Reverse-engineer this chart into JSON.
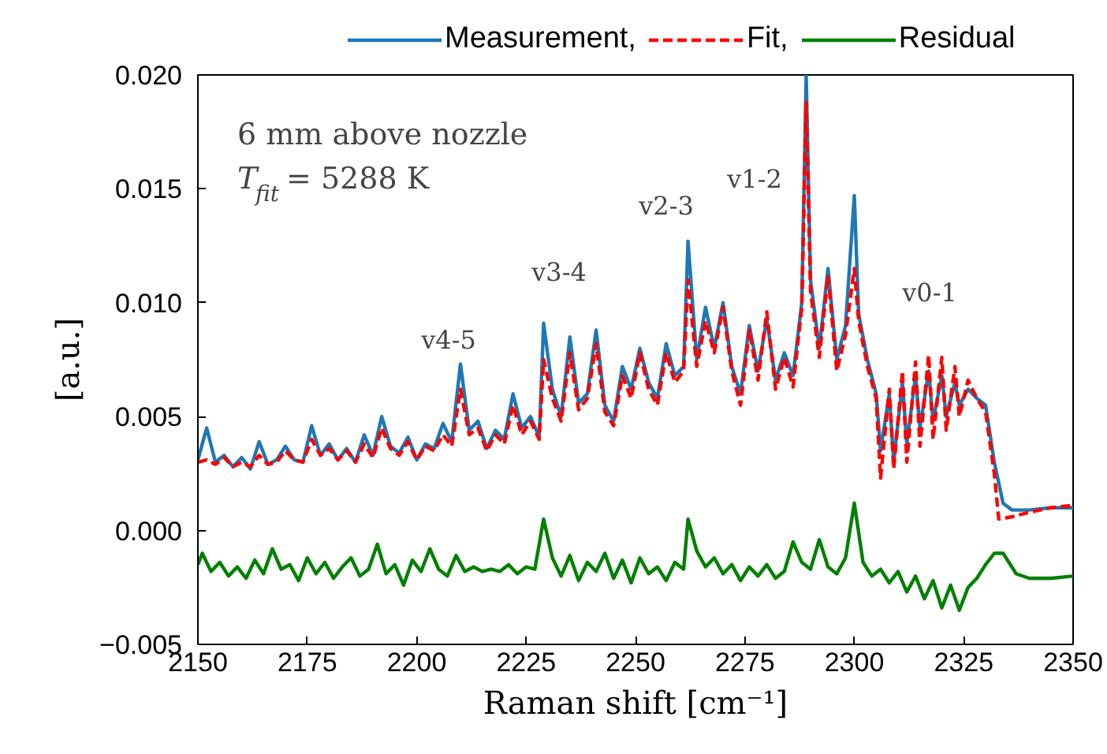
{
  "chart_data": {
    "type": "line",
    "xlabel": "Raman shift [cm⁻¹]",
    "ylabel": "[a.u.]",
    "xlim": [
      2150,
      2350
    ],
    "xticks": [
      2150,
      2175,
      2200,
      2225,
      2250,
      2275,
      2300,
      2325,
      2350
    ],
    "ylim": [
      -0.005,
      0.02
    ],
    "yticks": [
      {
        "value": -0.005,
        "label": "−0.005"
      },
      {
        "value": 0,
        "label": "0.000"
      },
      {
        "value": 0.005,
        "label": "0.005"
      },
      {
        "value": 0.01,
        "label": "0.010"
      },
      {
        "value": 0.015,
        "label": "0.015"
      },
      {
        "value": 0.02,
        "label": "0.020"
      }
    ],
    "grid": false,
    "legend": "top",
    "marker": "none",
    "annotations": [
      "6 mm above nozzle",
      "T$_{fit}$ = 5288 K",
      "v4-5",
      "v3-4",
      "v2-3",
      "v1-2",
      "v0-1"
    ],
    "series": [
      {
        "name": "Measurement,",
        "color": "#1f77b4",
        "line_style": "solid",
        "x": [
          2150,
          2152,
          2154,
          2156,
          2158,
          2160,
          2162,
          2164,
          2166,
          2168,
          2170,
          2172,
          2174,
          2176,
          2178,
          2180,
          2182,
          2184,
          2186,
          2188,
          2190,
          2192,
          2194,
          2196,
          2198,
          2200,
          2202,
          2204,
          2206,
          2208,
          2210,
          2212,
          2214,
          2216,
          2218,
          2220,
          2222,
          2224,
          2226,
          2228,
          2229,
          2231,
          2233,
          2235,
          2237,
          2239,
          2241,
          2243,
          2245,
          2247,
          2249,
          2251,
          2253,
          2255,
          2257,
          2259,
          2261,
          2262,
          2264,
          2266,
          2268,
          2270,
          2272,
          2274,
          2276,
          2278,
          2280,
          2282,
          2284,
          2286,
          2288,
          2289,
          2290,
          2292,
          2294,
          2296,
          2298,
          2300,
          2301,
          2303,
          2305,
          2306,
          2308,
          2309,
          2311,
          2312,
          2314,
          2315,
          2317,
          2318,
          2320,
          2321,
          2323,
          2324,
          2326,
          2328,
          2330,
          2332,
          2334,
          2336,
          2340,
          2345,
          2350
        ],
        "values": [
          0.0031,
          0.0045,
          0.003,
          0.0033,
          0.0028,
          0.0032,
          0.0027,
          0.0039,
          0.0029,
          0.0031,
          0.0037,
          0.0031,
          0.003,
          0.0046,
          0.0033,
          0.0038,
          0.0031,
          0.0036,
          0.003,
          0.0042,
          0.0033,
          0.005,
          0.0037,
          0.0034,
          0.0041,
          0.0031,
          0.0038,
          0.0036,
          0.0047,
          0.0039,
          0.0073,
          0.0044,
          0.0048,
          0.0036,
          0.0044,
          0.004,
          0.006,
          0.0045,
          0.005,
          0.0041,
          0.0091,
          0.0062,
          0.005,
          0.0085,
          0.0056,
          0.006,
          0.0088,
          0.0055,
          0.0048,
          0.0072,
          0.0062,
          0.008,
          0.0065,
          0.0058,
          0.0082,
          0.0068,
          0.0072,
          0.0127,
          0.0075,
          0.0098,
          0.008,
          0.01,
          0.0072,
          0.006,
          0.009,
          0.007,
          0.0093,
          0.0066,
          0.0078,
          0.0068,
          0.01,
          0.02,
          0.011,
          0.008,
          0.0115,
          0.0075,
          0.009,
          0.0147,
          0.0095,
          0.0075,
          0.006,
          0.0035,
          0.006,
          0.003,
          0.0065,
          0.0038,
          0.0068,
          0.0045,
          0.007,
          0.0048,
          0.0068,
          0.005,
          0.0065,
          0.0055,
          0.0062,
          0.0058,
          0.0055,
          0.003,
          0.0012,
          0.0009,
          0.0009,
          0.001,
          0.001
        ]
      },
      {
        "name": "Fit,",
        "color": "#ff0000",
        "line_style": "dashed",
        "x": [
          2150,
          2152,
          2154,
          2156,
          2158,
          2160,
          2162,
          2164,
          2166,
          2168,
          2170,
          2172,
          2174,
          2176,
          2178,
          2180,
          2182,
          2184,
          2186,
          2188,
          2190,
          2192,
          2194,
          2196,
          2198,
          2200,
          2202,
          2204,
          2206,
          2208,
          2210,
          2212,
          2214,
          2216,
          2218,
          2220,
          2222,
          2224,
          2226,
          2228,
          2229,
          2231,
          2233,
          2235,
          2237,
          2239,
          2241,
          2243,
          2245,
          2247,
          2249,
          2251,
          2253,
          2255,
          2257,
          2259,
          2261,
          2262,
          2264,
          2266,
          2268,
          2270,
          2272,
          2274,
          2276,
          2278,
          2280,
          2282,
          2284,
          2286,
          2288,
          2289,
          2290,
          2292,
          2294,
          2296,
          2298,
          2300,
          2301,
          2303,
          2305,
          2306,
          2308,
          2309,
          2311,
          2312,
          2314,
          2315,
          2317,
          2318,
          2320,
          2321,
          2323,
          2324,
          2326,
          2328,
          2330,
          2332,
          2333,
          2336,
          2340,
          2345,
          2350
        ],
        "values": [
          0.003,
          0.0031,
          0.0029,
          0.0032,
          0.0028,
          0.003,
          0.0028,
          0.0033,
          0.0029,
          0.003,
          0.0035,
          0.0031,
          0.003,
          0.004,
          0.0033,
          0.0036,
          0.0031,
          0.0035,
          0.003,
          0.0038,
          0.0032,
          0.0045,
          0.0036,
          0.0033,
          0.0039,
          0.0031,
          0.0037,
          0.0035,
          0.0042,
          0.0037,
          0.0062,
          0.0042,
          0.0045,
          0.0035,
          0.0042,
          0.0038,
          0.0055,
          0.0042,
          0.0048,
          0.004,
          0.0075,
          0.0058,
          0.0048,
          0.0078,
          0.0053,
          0.0058,
          0.0082,
          0.0052,
          0.0046,
          0.0068,
          0.0058,
          0.0078,
          0.0062,
          0.0055,
          0.0078,
          0.0065,
          0.007,
          0.011,
          0.0072,
          0.0092,
          0.0078,
          0.0098,
          0.007,
          0.0055,
          0.0088,
          0.0066,
          0.0096,
          0.0062,
          0.0076,
          0.0063,
          0.0098,
          0.0188,
          0.0105,
          0.0076,
          0.0112,
          0.007,
          0.0086,
          0.0115,
          0.0092,
          0.0072,
          0.0058,
          0.0023,
          0.0062,
          0.0027,
          0.007,
          0.003,
          0.0074,
          0.0037,
          0.0077,
          0.004,
          0.0076,
          0.0044,
          0.0072,
          0.005,
          0.0066,
          0.0058,
          0.0052,
          0.0025,
          0.0005,
          0.0006,
          0.0008,
          0.001,
          0.0011
        ]
      },
      {
        "name": "Residual",
        "color": "#008000",
        "line_style": "solid",
        "x": [
          2150,
          2151,
          2153,
          2155,
          2157,
          2159,
          2161,
          2163,
          2165,
          2167,
          2169,
          2171,
          2173,
          2175,
          2177,
          2179,
          2181,
          2183,
          2185,
          2187,
          2189,
          2191,
          2193,
          2195,
          2197,
          2199,
          2201,
          2203,
          2205,
          2207,
          2209,
          2211,
          2213,
          2215,
          2217,
          2219,
          2221,
          2223,
          2225,
          2227,
          2229,
          2231,
          2233,
          2235,
          2237,
          2239,
          2241,
          2243,
          2245,
          2247,
          2249,
          2251,
          2253,
          2255,
          2257,
          2259,
          2261,
          2262,
          2264,
          2266,
          2268,
          2270,
          2272,
          2274,
          2276,
          2278,
          2280,
          2282,
          2284,
          2286,
          2288,
          2290,
          2292,
          2294,
          2296,
          2298,
          2300,
          2302,
          2304,
          2306,
          2308,
          2310,
          2312,
          2314,
          2316,
          2318,
          2320,
          2322,
          2324,
          2326,
          2328,
          2330,
          2332,
          2334,
          2337,
          2340,
          2345,
          2350
        ],
        "values": [
          -0.0015,
          -0.001,
          -0.0018,
          -0.0014,
          -0.002,
          -0.0016,
          -0.0021,
          -0.0013,
          -0.0019,
          -0.0008,
          -0.0017,
          -0.0015,
          -0.0022,
          -0.0012,
          -0.0019,
          -0.0014,
          -0.0021,
          -0.0016,
          -0.0012,
          -0.002,
          -0.0017,
          -0.0006,
          -0.0019,
          -0.0015,
          -0.0024,
          -0.0013,
          -0.0018,
          -0.0008,
          -0.0017,
          -0.002,
          -0.0011,
          -0.0018,
          -0.0016,
          -0.0018,
          -0.0017,
          -0.0018,
          -0.0015,
          -0.0019,
          -0.0016,
          -0.0017,
          0.0005,
          -0.0012,
          -0.002,
          -0.0011,
          -0.0022,
          -0.0014,
          -0.0018,
          -0.001,
          -0.0021,
          -0.0013,
          -0.0023,
          -0.0012,
          -0.0019,
          -0.0016,
          -0.0022,
          -0.0014,
          -0.0017,
          0.0005,
          -0.0009,
          -0.0016,
          -0.0012,
          -0.0019,
          -0.0015,
          -0.0022,
          -0.0016,
          -0.002,
          -0.0015,
          -0.0021,
          -0.0018,
          -0.0005,
          -0.0014,
          -0.0017,
          -0.0004,
          -0.0016,
          -0.0019,
          -0.0012,
          0.0012,
          -0.0014,
          -0.002,
          -0.0017,
          -0.0023,
          -0.0018,
          -0.0027,
          -0.002,
          -0.003,
          -0.0022,
          -0.0034,
          -0.0024,
          -0.0035,
          -0.0025,
          -0.0021,
          -0.0015,
          -0.001,
          -0.001,
          -0.0019,
          -0.0021,
          -0.0021,
          -0.002
        ]
      }
    ]
  }
}
